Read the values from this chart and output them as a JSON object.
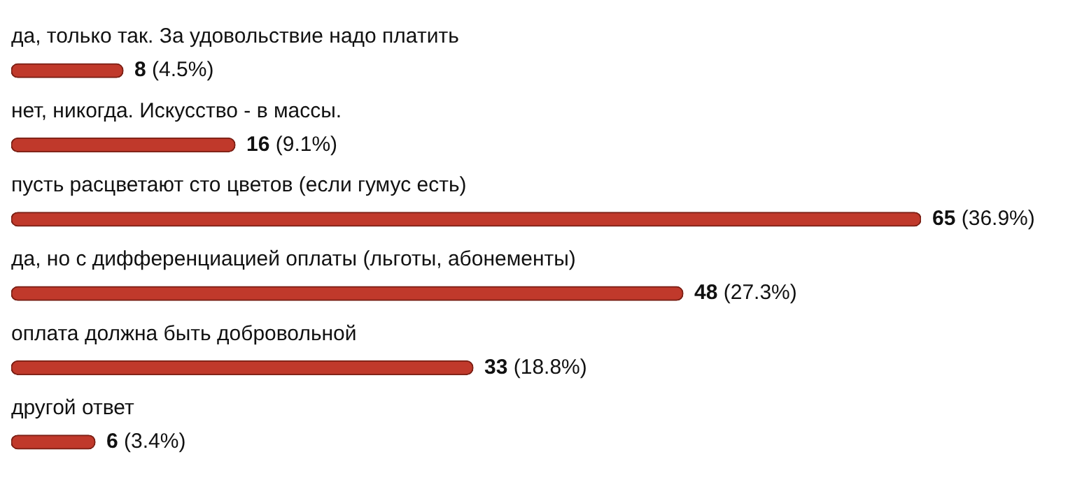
{
  "chart_data": {
    "type": "bar",
    "orientation": "horizontal",
    "categories": [
      "да, только так. За удовольствие надо платить",
      "нет, никогда. Искусство - в массы.",
      "пусть расцветают сто цветов (если гумус есть)",
      "да, но с дифференциацией оплаты (льготы, абонементы)",
      "оплата должна быть добровольной",
      "другой ответ"
    ],
    "values": [
      8,
      16,
      65,
      48,
      33,
      6
    ],
    "value_labels": [
      "8 (4.5%)",
      "16 (9.1%)",
      "65 (36.9%)",
      "48 (27.3%)",
      "33 (18.8%)",
      "6 (3.4%)"
    ],
    "color": "#c0392b"
  }
}
